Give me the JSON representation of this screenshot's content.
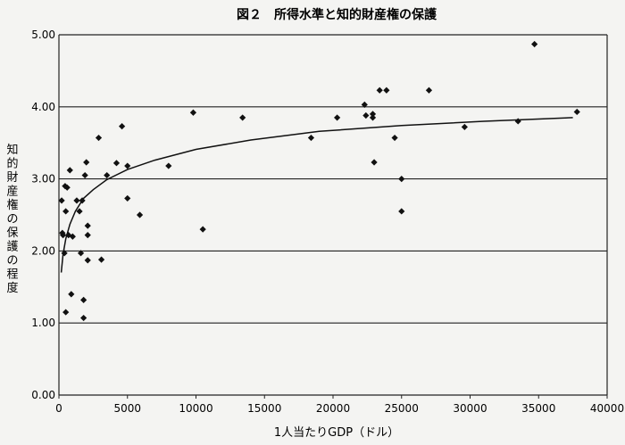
{
  "chart_data": {
    "type": "scatter",
    "title": "図２　所得水準と知的財産権の保護",
    "xlabel": "1人当たりGDP（ドル）",
    "ylabel": "知的財産権の保護の程度",
    "xlim": [
      0,
      40000
    ],
    "ylim": [
      0,
      5
    ],
    "x_ticks": [
      "0",
      "5000",
      "10000",
      "15000",
      "20000",
      "25000",
      "30000",
      "35000",
      "40000"
    ],
    "y_ticks": [
      "0.00",
      "1.00",
      "2.00",
      "3.00",
      "4.00",
      "5.00"
    ],
    "grid": "horizontal",
    "marker": "diamond",
    "trendline": "logarithmic",
    "series": [
      {
        "points": [
          [
            200,
            2.7
          ],
          [
            250,
            2.25
          ],
          [
            300,
            2.22
          ],
          [
            400,
            1.97
          ],
          [
            450,
            2.9
          ],
          [
            500,
            1.15
          ],
          [
            500,
            2.55
          ],
          [
            600,
            2.88
          ],
          [
            700,
            2.22
          ],
          [
            800,
            3.12
          ],
          [
            900,
            1.4
          ],
          [
            1000,
            2.2
          ],
          [
            1300,
            2.7
          ],
          [
            1500,
            2.55
          ],
          [
            1600,
            1.97
          ],
          [
            1700,
            2.7
          ],
          [
            1800,
            1.32
          ],
          [
            1800,
            1.07
          ],
          [
            1900,
            3.05
          ],
          [
            2000,
            3.23
          ],
          [
            2100,
            1.87
          ],
          [
            2100,
            2.22
          ],
          [
            2100,
            2.35
          ],
          [
            2900,
            3.57
          ],
          [
            3100,
            1.88
          ],
          [
            3500,
            3.05
          ],
          [
            4200,
            3.22
          ],
          [
            4600,
            3.73
          ],
          [
            5000,
            3.18
          ],
          [
            5000,
            2.73
          ],
          [
            5900,
            2.5
          ],
          [
            8000,
            3.18
          ],
          [
            9800,
            3.92
          ],
          [
            10500,
            2.3
          ],
          [
            13400,
            3.85
          ],
          [
            18400,
            3.57
          ],
          [
            20300,
            3.85
          ],
          [
            22300,
            4.03
          ],
          [
            22400,
            3.88
          ],
          [
            22900,
            3.85
          ],
          [
            22900,
            3.9
          ],
          [
            23000,
            3.23
          ],
          [
            23400,
            4.23
          ],
          [
            23900,
            4.23
          ],
          [
            24500,
            3.57
          ],
          [
            25000,
            3.0
          ],
          [
            25000,
            2.55
          ],
          [
            27000,
            4.23
          ],
          [
            29600,
            3.72
          ],
          [
            33500,
            3.8
          ],
          [
            34700,
            4.87
          ],
          [
            37800,
            3.93
          ]
        ]
      }
    ],
    "trend": {
      "x": [
        170,
        300,
        500,
        800,
        1200,
        1800,
        2500,
        3500,
        5000,
        7000,
        10000,
        14000,
        19000,
        25000,
        31000,
        37500
      ],
      "y": [
        1.7,
        1.95,
        2.17,
        2.37,
        2.55,
        2.73,
        2.85,
        2.99,
        3.13,
        3.26,
        3.41,
        3.54,
        3.66,
        3.74,
        3.8,
        3.85
      ]
    }
  }
}
